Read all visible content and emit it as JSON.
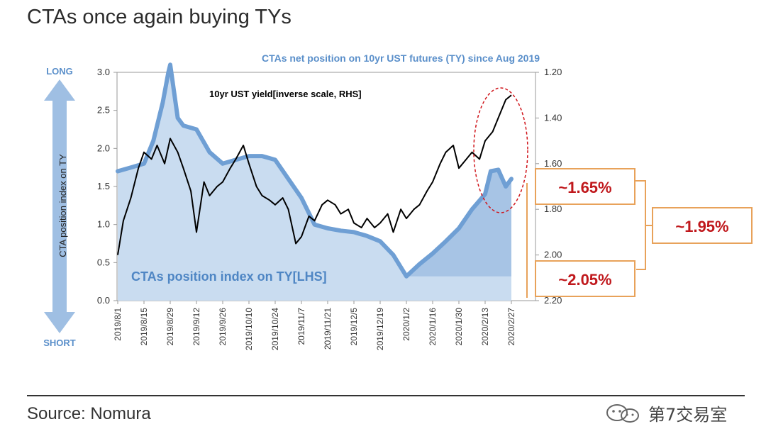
{
  "title": "CTAs once again buying TYs",
  "source": "Source: Nomura",
  "watermark": "第7交易室",
  "chart_data": {
    "type": "area",
    "chart_title": "CTAs net position on 10yr UST futures (TY) since Aug 2019",
    "left_axis": {
      "label": "CTA position index on TY",
      "ylim": [
        0,
        3.0
      ],
      "ticks": [
        "0.0",
        "0.5",
        "1.0",
        "1.5",
        "2.0",
        "2.5",
        "3.0"
      ],
      "top_marker": "LONG",
      "bottom_marker": "SHORT"
    },
    "right_axis": {
      "inverse": true,
      "ylim": [
        2.2,
        1.2
      ],
      "ticks": [
        "1.20",
        "1.40",
        "1.60",
        "1.80",
        "2.00",
        "2.20"
      ]
    },
    "x_ticks": [
      "2019/8/1",
      "2019/8/15",
      "2019/8/29",
      "2019/9/12",
      "2019/9/26",
      "2019/10/10",
      "2019/10/24",
      "2019/11/7",
      "2019/11/21",
      "2019/12/5",
      "2019/12/19",
      "2020/1/2",
      "2020/1/16",
      "2020/1/30",
      "2020/2/13",
      "2020/2/27"
    ],
    "colors": {
      "area_fill": "#c9dcf0",
      "area_recent_fill": "#a7c4e5",
      "position_line": "#6f9fd4",
      "yield_line": "#000000",
      "callout_border": "#e8a25a",
      "callout_text": "#c0181c",
      "highlight_ellipse": "#d0151b"
    },
    "series": [
      {
        "name": "CTAs position index on TY[LHS]",
        "axis": "left",
        "x": [
          "2019/8/1",
          "2019/8/8",
          "2019/8/15",
          "2019/8/20",
          "2019/8/25",
          "2019/8/28",
          "2019/8/29",
          "2019/9/2",
          "2019/9/5",
          "2019/9/12",
          "2019/9/19",
          "2019/9/26",
          "2019/10/3",
          "2019/10/10",
          "2019/10/17",
          "2019/10/24",
          "2019/10/31",
          "2019/11/7",
          "2019/11/14",
          "2019/11/21",
          "2019/11/28",
          "2019/12/5",
          "2019/12/12",
          "2019/12/19",
          "2019/12/26",
          "2020/1/2",
          "2020/1/9",
          "2020/1/16",
          "2020/1/23",
          "2020/1/30",
          "2020/2/6",
          "2020/2/13",
          "2020/2/16",
          "2020/2/20",
          "2020/2/24",
          "2020/2/27"
        ],
        "y": [
          1.7,
          1.75,
          1.8,
          2.1,
          2.6,
          3.0,
          3.1,
          2.4,
          2.3,
          2.25,
          1.95,
          1.8,
          1.85,
          1.9,
          1.9,
          1.85,
          1.6,
          1.35,
          1.0,
          0.95,
          0.92,
          0.9,
          0.85,
          0.78,
          0.6,
          0.32,
          0.48,
          0.62,
          0.78,
          0.95,
          1.2,
          1.4,
          1.7,
          1.72,
          1.5,
          1.6
        ]
      },
      {
        "name": "10yr UST yield[inverse scale, RHS]",
        "axis": "right",
        "x": [
          "2019/8/1",
          "2019/8/4",
          "2019/8/8",
          "2019/8/12",
          "2019/8/15",
          "2019/8/19",
          "2019/8/22",
          "2019/8/26",
          "2019/8/29",
          "2019/9/2",
          "2019/9/5",
          "2019/9/9",
          "2019/9/12",
          "2019/9/16",
          "2019/9/19",
          "2019/9/23",
          "2019/9/26",
          "2019/9/30",
          "2019/10/3",
          "2019/10/7",
          "2019/10/10",
          "2019/10/14",
          "2019/10/17",
          "2019/10/21",
          "2019/10/24",
          "2019/10/28",
          "2019/10/31",
          "2019/11/4",
          "2019/11/7",
          "2019/11/11",
          "2019/11/14",
          "2019/11/18",
          "2019/11/21",
          "2019/11/25",
          "2019/11/28",
          "2019/12/2",
          "2019/12/5",
          "2019/12/9",
          "2019/12/12",
          "2019/12/16",
          "2019/12/19",
          "2019/12/23",
          "2019/12/26",
          "2019/12/30",
          "2020/1/2",
          "2020/1/6",
          "2020/1/9",
          "2020/1/13",
          "2020/1/16",
          "2020/1/20",
          "2020/1/23",
          "2020/1/27",
          "2020/1/30",
          "2020/2/3",
          "2020/2/6",
          "2020/2/10",
          "2020/2/13",
          "2020/2/17",
          "2020/2/20",
          "2020/2/24",
          "2020/2/27"
        ],
        "y": [
          2.0,
          1.85,
          1.75,
          1.62,
          1.55,
          1.58,
          1.52,
          1.6,
          1.49,
          1.55,
          1.62,
          1.72,
          1.9,
          1.68,
          1.74,
          1.7,
          1.68,
          1.62,
          1.58,
          1.52,
          1.6,
          1.7,
          1.74,
          1.76,
          1.78,
          1.75,
          1.8,
          1.95,
          1.92,
          1.83,
          1.85,
          1.78,
          1.76,
          1.78,
          1.82,
          1.8,
          1.86,
          1.88,
          1.84,
          1.88,
          1.86,
          1.82,
          1.9,
          1.8,
          1.84,
          1.8,
          1.78,
          1.72,
          1.68,
          1.6,
          1.55,
          1.52,
          1.62,
          1.58,
          1.55,
          1.58,
          1.5,
          1.46,
          1.4,
          1.32,
          1.3
        ]
      }
    ],
    "annotations": {
      "yield_label": "10yr UST yield[inverse scale, RHS]",
      "position_label": "CTAs position index on TY[LHS]",
      "callouts": [
        "~1.65%",
        "~1.95%",
        "~2.05%"
      ]
    }
  }
}
